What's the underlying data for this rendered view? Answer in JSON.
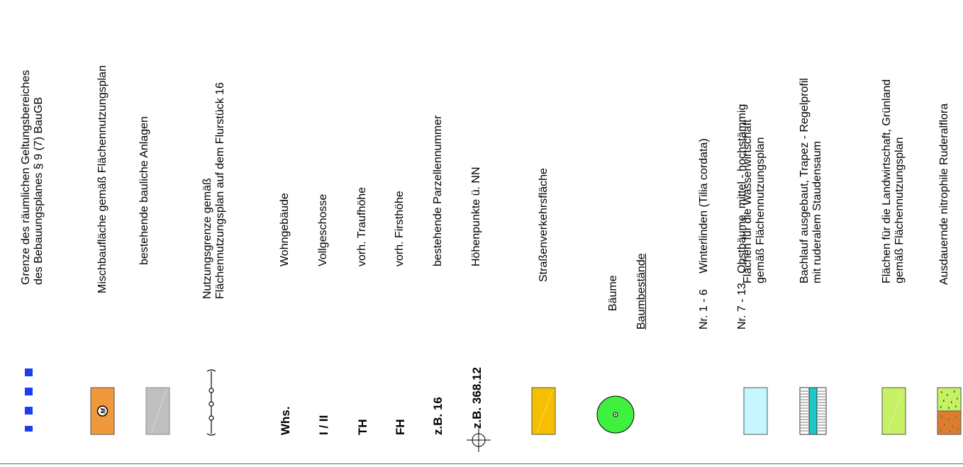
{
  "legend": {
    "geltungsbereich": {
      "line1": "Grenze des räumlichen Geltungsbereiches",
      "line2": "des Bebauungsplanes § 9 (7) BauGB",
      "color": "#1a3ff0"
    },
    "mischbau": {
      "label": "Mischbaufläche gemäß Flächennutzungsplan",
      "symbol": "M",
      "color": "#f0993c"
    },
    "bestand": {
      "label": "bestehende bauliche Anlagen",
      "color": "#bfbfbf"
    },
    "nutzungsgrenze": {
      "line1": "Nutzungsgrenze gemäß",
      "line2": "Flächennutzungsplan auf dem Flurstück 16"
    },
    "whs": {
      "abbr": "Whs.",
      "label": "Wohngebäude"
    },
    "vollgeschosse": {
      "abbr": "I / II",
      "label": "Vollgeschosse"
    },
    "th": {
      "abbr": "TH",
      "label": "vorh. Traufhöhe"
    },
    "fh": {
      "abbr": "FH",
      "label": "vorh. Firsthöhe"
    },
    "parzelle": {
      "abbr": "z.B. 16",
      "label": "bestehende Parzellennummer"
    },
    "hoehe": {
      "abbr": "z.B. 368.12",
      "label": "Höhenpunkte ü. NN"
    },
    "strasse": {
      "label": "Straßenverkehrsfläche",
      "color": "#f6c000"
    },
    "baeume": {
      "label": "Bäume",
      "color": "#3ff03f"
    },
    "baumbestaende": {
      "heading": "Baumbestände",
      "row1": "Nr. 1 - 6     Winterlinden (Tilia cordata)",
      "row2": "Nr. 7 - 13   Obstbäume, mittel - hochstämmig"
    },
    "wasser": {
      "line1": "Flächen für die Wasserwirtschaft",
      "line2": "gemäß Flächennutzungsplan",
      "color": "#c8f6ff"
    },
    "bachlauf": {
      "line1": "Bachlauf ausgebaut, Trapez - Regelprofil",
      "line2": "mit ruderalem Staudensaum",
      "color": "#1ec8c8"
    },
    "landwirtschaft": {
      "line1": "Flächen für die Landwirtschaft, Grünland",
      "line2": "gemäß Flächennutzungsplan",
      "color": "#c8f064"
    },
    "ruderal": {
      "label": "Ausdauernde nitrophile Ruderalflora",
      "color_top": "#c8f064",
      "color_bottom": "#e07a30"
    }
  }
}
